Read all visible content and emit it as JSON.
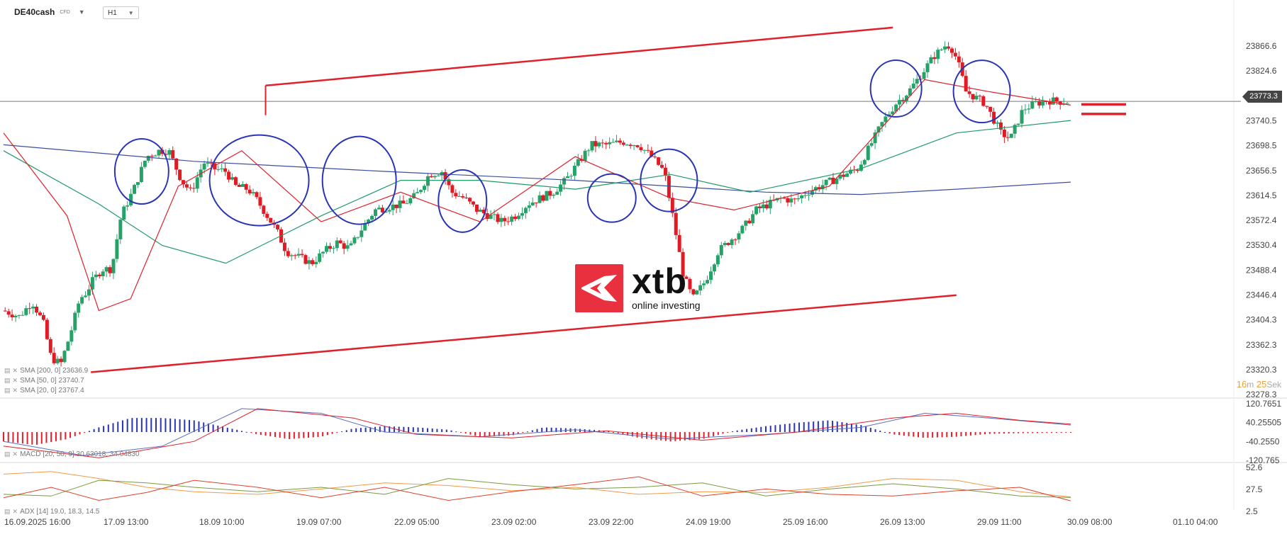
{
  "header": {
    "symbol": "DE40cash",
    "instrument_type": "CFD",
    "timeframe": "H1"
  },
  "colors": {
    "bull": "#26a269",
    "bear": "#e01b24",
    "sma200": "#3b4fa0",
    "sma50": "#1f9a66",
    "sma20": "#e0202a",
    "channel": "#e0202a",
    "circles": "#2a35b5",
    "macd_pos": "#2a35b5",
    "macd_neg": "#e0202a"
  },
  "price_tag": "23773.3",
  "timer": {
    "minutes": "16",
    "m_unit": "m",
    "seconds": "25",
    "s_unit": "Sek"
  },
  "logo": {
    "brand": "xtb",
    "tagline": "online investing"
  },
  "indicator_labels": {
    "sma200": "SMA [200, 0] 23636.9",
    "sma50": "SMA [50, 0] 23740.7",
    "sma20": "SMA [20, 0] 23767.4",
    "macd": "MACD [20, 50, 9] 30.63018, 34.04830",
    "adx": "ADX [14] 19.0, 18.3, 14.5"
  },
  "chart_data": [
    {
      "type": "candlestick",
      "title": "DE40cash H1",
      "y_ticks": [
        "23866.6",
        "23824.6",
        "23740.5",
        "23698.5",
        "23656.5",
        "23614.5",
        "23572.4",
        "23530.4",
        "23488.4",
        "23446.4",
        "23404.3",
        "23362.3",
        "23320.3",
        "23278.3"
      ],
      "ylim": [
        23278.3,
        23908.6
      ],
      "x_ticks": [
        "16.09.2025  16:00",
        "17.09  13:00",
        "18.09  10:00",
        "19.09  07:00",
        "22.09  05:00",
        "23.09  02:00",
        "23.09  22:00",
        "24.09  19:00",
        "25.09  16:00",
        "26.09  13:00",
        "29.09  11:00",
        "30.09  08:00",
        "01.10  04:00"
      ],
      "last_price": 23773.3,
      "close_path": [
        [
          0,
          23420
        ],
        [
          10,
          23410
        ],
        [
          18,
          23435
        ],
        [
          25,
          23400
        ],
        [
          30,
          23340
        ],
        [
          36,
          23330
        ],
        [
          42,
          23380
        ],
        [
          48,
          23440
        ],
        [
          52,
          23450
        ],
        [
          56,
          23470
        ],
        [
          62,
          23490
        ],
        [
          68,
          23490
        ],
        [
          74,
          23580
        ],
        [
          82,
          23625
        ],
        [
          90,
          23680
        ],
        [
          98,
          23690
        ],
        [
          104,
          23690
        ],
        [
          112,
          23640
        ],
        [
          118,
          23620
        ],
        [
          126,
          23670
        ],
        [
          132,
          23660
        ],
        [
          140,
          23655
        ],
        [
          146,
          23630
        ],
        [
          154,
          23625
        ],
        [
          160,
          23605
        ],
        [
          166,
          23580
        ],
        [
          172,
          23555
        ],
        [
          178,
          23520
        ],
        [
          186,
          23510
        ],
        [
          194,
          23500
        ],
        [
          202,
          23520
        ],
        [
          210,
          23535
        ],
        [
          218,
          23525
        ],
        [
          226,
          23560
        ],
        [
          234,
          23590
        ],
        [
          242,
          23595
        ],
        [
          252,
          23600
        ],
        [
          260,
          23615
        ],
        [
          268,
          23650
        ],
        [
          276,
          23655
        ],
        [
          282,
          23620
        ],
        [
          290,
          23610
        ],
        [
          298,
          23590
        ],
        [
          306,
          23580
        ],
        [
          314,
          23570
        ],
        [
          322,
          23580
        ],
        [
          330,
          23600
        ],
        [
          338,
          23610
        ],
        [
          346,
          23620
        ],
        [
          354,
          23640
        ],
        [
          362,
          23670
        ],
        [
          370,
          23700
        ],
        [
          380,
          23700
        ],
        [
          390,
          23705
        ],
        [
          400,
          23700
        ],
        [
          408,
          23680
        ],
        [
          416,
          23655
        ],
        [
          422,
          23570
        ],
        [
          428,
          23480
        ],
        [
          434,
          23440
        ],
        [
          442,
          23470
        ],
        [
          450,
          23520
        ],
        [
          458,
          23540
        ],
        [
          466,
          23560
        ],
        [
          474,
          23590
        ],
        [
          482,
          23600
        ],
        [
          490,
          23610
        ],
        [
          498,
          23605
        ],
        [
          506,
          23620
        ],
        [
          514,
          23630
        ],
        [
          522,
          23640
        ],
        [
          530,
          23650
        ],
        [
          538,
          23660
        ],
        [
          546,
          23700
        ],
        [
          554,
          23740
        ],
        [
          562,
          23770
        ],
        [
          570,
          23790
        ],
        [
          578,
          23820
        ],
        [
          586,
          23850
        ],
        [
          594,
          23870
        ],
        [
          598,
          23860
        ],
        [
          602,
          23830
        ],
        [
          606,
          23790
        ],
        [
          612,
          23780
        ],
        [
          618,
          23770
        ],
        [
          624,
          23740
        ],
        [
          628,
          23720
        ],
        [
          634,
          23710
        ],
        [
          642,
          23760
        ],
        [
          650,
          23770
        ],
        [
          658,
          23775
        ],
        [
          666,
          23773
        ],
        [
          672,
          23773.3
        ]
      ],
      "x_range": [
        0,
        672
      ],
      "series": [
        {
          "name": "SMA [200, 0]",
          "values": [
            [
              0,
              23700
            ],
            [
              120,
              23672
            ],
            [
              240,
              23655
            ],
            [
              360,
              23640
            ],
            [
              420,
              23630
            ],
            [
              480,
              23620
            ],
            [
              540,
              23616
            ],
            [
              600,
              23625
            ],
            [
              672,
              23637
            ]
          ]
        },
        {
          "name": "SMA [50, 0]",
          "values": [
            [
              0,
              23690
            ],
            [
              60,
              23600
            ],
            [
              100,
              23530
            ],
            [
              140,
              23500
            ],
            [
              200,
              23580
            ],
            [
              250,
              23640
            ],
            [
              300,
              23640
            ],
            [
              360,
              23625
            ],
            [
              420,
              23650
            ],
            [
              470,
              23620
            ],
            [
              540,
              23660
            ],
            [
              600,
              23720
            ],
            [
              672,
              23741
            ]
          ]
        },
        {
          "name": "SMA [20, 0]",
          "values": [
            [
              0,
              23720
            ],
            [
              40,
              23580
            ],
            [
              60,
              23420
            ],
            [
              80,
              23440
            ],
            [
              110,
              23630
            ],
            [
              150,
              23690
            ],
            [
              200,
              23570
            ],
            [
              250,
              23620
            ],
            [
              300,
              23570
            ],
            [
              360,
              23680
            ],
            [
              420,
              23610
            ],
            [
              460,
              23590
            ],
            [
              520,
              23630
            ],
            [
              580,
              23810
            ],
            [
              620,
              23790
            ],
            [
              672,
              23767
            ]
          ]
        }
      ],
      "annotations": [
        {
          "label": "ascending channel upper",
          "from": [
            165,
            23800
          ],
          "to": [
            560,
            23898
          ]
        },
        {
          "label": "ascending channel lower",
          "from": [
            55,
            23316
          ],
          "to": [
            600,
            23446
          ]
        },
        {
          "label": "horizontal level",
          "value": 23773.3
        }
      ]
    },
    {
      "type": "bar",
      "title": "MACD [20, 50, 9]",
      "y_ticks": [
        "120.7651",
        "40.25505",
        "-40.2550",
        "-120.765"
      ],
      "ylim": [
        -120.765,
        120.7651
      ],
      "histogram": [
        [
          0,
          -40
        ],
        [
          20,
          -55
        ],
        [
          40,
          -30
        ],
        [
          60,
          20
        ],
        [
          80,
          60
        ],
        [
          100,
          60
        ],
        [
          120,
          50
        ],
        [
          140,
          20
        ],
        [
          160,
          -10
        ],
        [
          180,
          -30
        ],
        [
          200,
          -20
        ],
        [
          220,
          15
        ],
        [
          240,
          25
        ],
        [
          260,
          20
        ],
        [
          280,
          10
        ],
        [
          300,
          -20
        ],
        [
          320,
          -15
        ],
        [
          340,
          20
        ],
        [
          360,
          15
        ],
        [
          380,
          5
        ],
        [
          400,
          -25
        ],
        [
          420,
          -40
        ],
        [
          440,
          -30
        ],
        [
          460,
          5
        ],
        [
          480,
          25
        ],
        [
          500,
          40
        ],
        [
          520,
          50
        ],
        [
          540,
          30
        ],
        [
          560,
          -10
        ],
        [
          580,
          -25
        ],
        [
          600,
          -20
        ],
        [
          620,
          -8
        ],
        [
          640,
          -5
        ],
        [
          672,
          -3
        ]
      ],
      "lines": [
        {
          "name": "MACD",
          "values": [
            [
              0,
              -40
            ],
            [
              50,
              -100
            ],
            [
              100,
              -60
            ],
            [
              150,
              100
            ],
            [
              200,
              80
            ],
            [
              240,
              0
            ],
            [
              300,
              -20
            ],
            [
              360,
              10
            ],
            [
              420,
              -30
            ],
            [
              480,
              -10
            ],
            [
              540,
              20
            ],
            [
              580,
              80
            ],
            [
              620,
              60
            ],
            [
              672,
              30
            ]
          ]
        },
        {
          "name": "signal",
          "values": [
            [
              0,
              -60
            ],
            [
              60,
              -110
            ],
            [
              120,
              -40
            ],
            [
              160,
              100
            ],
            [
              220,
              60
            ],
            [
              260,
              -10
            ],
            [
              320,
              -25
            ],
            [
              380,
              5
            ],
            [
              440,
              -35
            ],
            [
              500,
              0
            ],
            [
              560,
              60
            ],
            [
              600,
              80
            ],
            [
              640,
              50
            ],
            [
              672,
              34
            ]
          ]
        }
      ]
    },
    {
      "type": "line",
      "title": "ADX [14]",
      "y_ticks": [
        "52.6",
        "27.5",
        "2.5"
      ],
      "ylim": [
        2.5,
        52.6
      ],
      "series": [
        {
          "name": "ADX",
          "values": [
            [
              0,
              45
            ],
            [
              30,
              48
            ],
            [
              60,
              40
            ],
            [
              90,
              30
            ],
            [
              120,
              25
            ],
            [
              160,
              22
            ],
            [
              200,
              28
            ],
            [
              240,
              35
            ],
            [
              280,
              32
            ],
            [
              320,
              26
            ],
            [
              360,
              30
            ],
            [
              400,
              22
            ],
            [
              440,
              25
            ],
            [
              480,
              24
            ],
            [
              520,
              30
            ],
            [
              560,
              40
            ],
            [
              600,
              38
            ],
            [
              640,
              25
            ],
            [
              672,
              19
            ]
          ]
        },
        {
          "name": "+DI",
          "values": [
            [
              0,
              22
            ],
            [
              30,
              20
            ],
            [
              60,
              38
            ],
            [
              90,
              35
            ],
            [
              120,
              30
            ],
            [
              160,
              25
            ],
            [
              200,
              30
            ],
            [
              240,
              22
            ],
            [
              280,
              40
            ],
            [
              320,
              33
            ],
            [
              360,
              28
            ],
            [
              400,
              30
            ],
            [
              440,
              35
            ],
            [
              480,
              20
            ],
            [
              520,
              28
            ],
            [
              560,
              34
            ],
            [
              600,
              28
            ],
            [
              640,
              20
            ],
            [
              672,
              18.3
            ]
          ]
        },
        {
          "name": "-DI",
          "values": [
            [
              0,
              18
            ],
            [
              30,
              30
            ],
            [
              60,
              15
            ],
            [
              90,
              24
            ],
            [
              120,
              38
            ],
            [
              160,
              30
            ],
            [
              200,
              18
            ],
            [
              240,
              30
            ],
            [
              280,
              15
            ],
            [
              320,
              25
            ],
            [
              360,
              33
            ],
            [
              400,
              42
            ],
            [
              440,
              20
            ],
            [
              480,
              28
            ],
            [
              520,
              22
            ],
            [
              560,
              20
            ],
            [
              600,
              26
            ],
            [
              640,
              30
            ],
            [
              672,
              14.5
            ]
          ]
        }
      ]
    }
  ]
}
